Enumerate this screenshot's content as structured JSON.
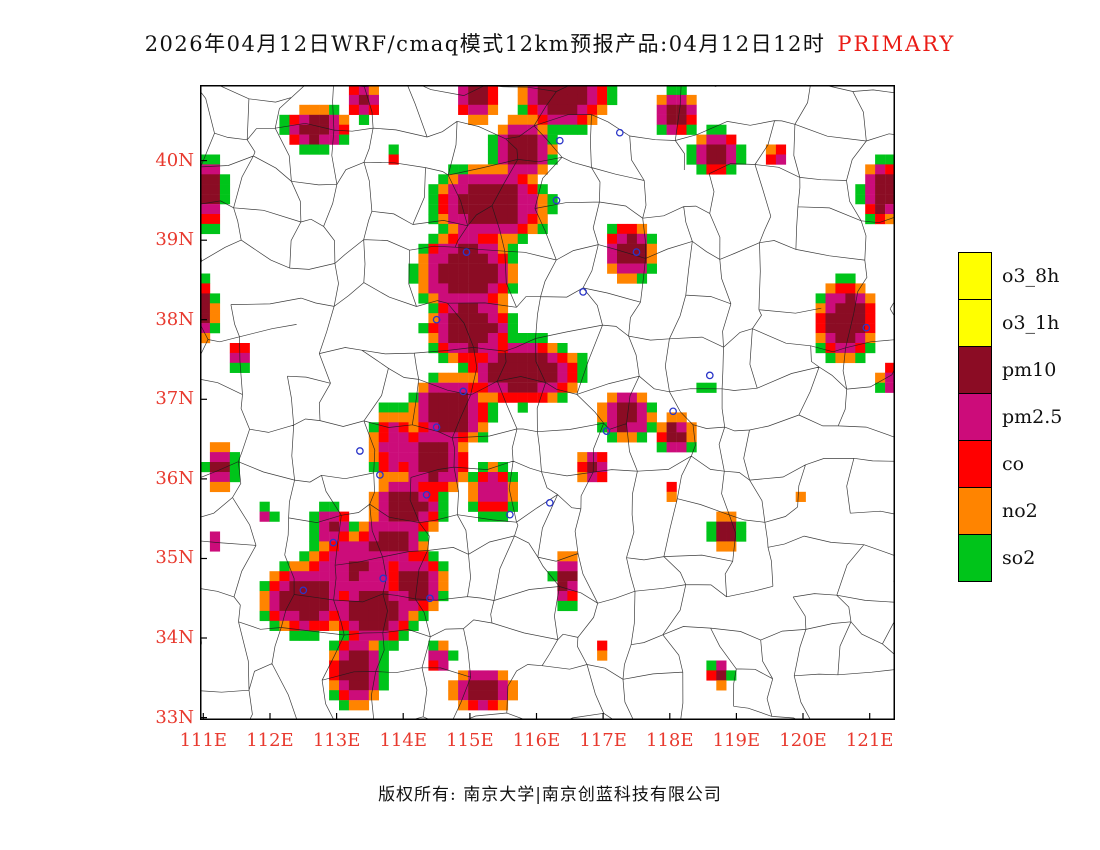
{
  "title": {
    "main": "2026年04月12日WRF/cmaq模式12km预报产品:04月12日12时",
    "tag": "PRIMARY"
  },
  "footer": {
    "copyright": "版权所有: 南京大学|南京创蓝科技有限公司"
  },
  "colors": {
    "axis_label": "#e8392e",
    "title_tag": "#ea1c16",
    "marker": "#2a35c8",
    "boundary": "#1b1b1b",
    "frame": "#000000"
  },
  "legend": {
    "items": [
      {
        "label": "o3_8h",
        "color": "#ffff00"
      },
      {
        "label": "o3_1h",
        "color": "#ffff00"
      },
      {
        "label": "pm10",
        "color": "#8b0c24"
      },
      {
        "label": "pm2.5",
        "color": "#cc0c7a"
      },
      {
        "label": "co",
        "color": "#ff0000"
      },
      {
        "label": "no2",
        "color": "#ff8400"
      },
      {
        "label": "so2",
        "color": "#00c41a"
      }
    ]
  },
  "axes": {
    "lat_labels": [
      "40N",
      "39N",
      "38N",
      "37N",
      "36N",
      "35N",
      "34N",
      "33N"
    ],
    "lat_values": [
      40,
      39,
      38,
      37,
      36,
      35,
      34,
      33
    ],
    "lon_labels": [
      "111E",
      "112E",
      "113E",
      "114E",
      "115E",
      "116E",
      "117E",
      "118E",
      "119E",
      "120E",
      "121E"
    ],
    "lon_values": [
      111,
      112,
      113,
      114,
      115,
      116,
      117,
      118,
      119,
      120,
      121
    ]
  },
  "map": {
    "lon_range": [
      110.95,
      121.38
    ],
    "lat_range": [
      32.97,
      40.95
    ],
    "grid": {
      "cols": 70,
      "rows": 64
    },
    "palette": {
      "g": "#00c41a",
      "o": "#ff8400",
      "r": "#ff0000",
      "m": "#cc0c7a",
      "d": "#8b0c24"
    },
    "thresholds": {
      "g": 0.145,
      "o": 0.215,
      "r": 0.295,
      "m": 0.38,
      "d": 0.6
    },
    "falloff": 1.9,
    "boundary_seed": 7,
    "blobs": [
      [
        116.4,
        40.85,
        0.75,
        0.5,
        1.0
      ],
      [
        115.1,
        40.8,
        0.35,
        0.35,
        0.9
      ],
      [
        115.8,
        40.15,
        0.5,
        0.45,
        0.95
      ],
      [
        115.3,
        39.45,
        0.95,
        0.55,
        1.0
      ],
      [
        114.95,
        38.6,
        0.8,
        0.6,
        1.0
      ],
      [
        115.0,
        37.9,
        0.7,
        0.5,
        1.0
      ],
      [
        115.8,
        37.35,
        0.95,
        0.45,
        1.0
      ],
      [
        114.7,
        36.85,
        0.65,
        0.5,
        1.0
      ],
      [
        114.45,
        36.25,
        0.6,
        0.5,
        0.95
      ],
      [
        114.05,
        35.65,
        0.6,
        0.45,
        0.92
      ],
      [
        113.9,
        36.4,
        0.55,
        0.7,
        0.5
      ],
      [
        115.35,
        35.85,
        0.5,
        0.45,
        0.55
      ],
      [
        113.3,
        34.85,
        1.05,
        0.65,
        0.62
      ],
      [
        112.55,
        34.5,
        0.75,
        0.5,
        0.95
      ],
      [
        113.55,
        34.35,
        0.7,
        0.5,
        0.95
      ],
      [
        114.2,
        34.7,
        0.5,
        0.45,
        0.88
      ],
      [
        113.3,
        33.6,
        0.45,
        0.55,
        0.9
      ],
      [
        113.8,
        35.2,
        0.6,
        0.4,
        0.85
      ],
      [
        112.95,
        35.4,
        0.35,
        0.3,
        0.75
      ],
      [
        111.1,
        39.6,
        0.25,
        0.5,
        0.9
      ],
      [
        112.7,
        40.4,
        0.55,
        0.3,
        0.9
      ],
      [
        113.4,
        40.75,
        0.3,
        0.25,
        0.8
      ],
      [
        113.85,
        40.05,
        0.15,
        0.15,
        0.4
      ],
      [
        118.1,
        40.6,
        0.35,
        0.32,
        0.95
      ],
      [
        118.7,
        40.1,
        0.4,
        0.3,
        0.95
      ],
      [
        119.6,
        40.05,
        0.2,
        0.2,
        0.55
      ],
      [
        121.2,
        39.6,
        0.35,
        0.45,
        0.95
      ],
      [
        117.4,
        38.85,
        0.4,
        0.42,
        0.95
      ],
      [
        120.65,
        38.0,
        0.5,
        0.55,
        1.0
      ],
      [
        121.3,
        37.25,
        0.2,
        0.25,
        0.6
      ],
      [
        117.35,
        36.8,
        0.45,
        0.35,
        0.9
      ],
      [
        118.1,
        36.55,
        0.3,
        0.28,
        0.85
      ],
      [
        118.55,
        37.2,
        0.13,
        0.13,
        0.45
      ],
      [
        116.85,
        36.15,
        0.25,
        0.25,
        0.85
      ],
      [
        118.0,
        35.85,
        0.14,
        0.14,
        0.5
      ],
      [
        118.85,
        35.35,
        0.25,
        0.25,
        0.85
      ],
      [
        116.45,
        34.75,
        0.22,
        0.4,
        0.85
      ],
      [
        115.2,
        33.35,
        0.55,
        0.3,
        0.9
      ],
      [
        114.55,
        33.75,
        0.25,
        0.25,
        0.6
      ],
      [
        116.95,
        33.85,
        0.15,
        0.15,
        0.45
      ],
      [
        118.75,
        33.55,
        0.2,
        0.2,
        0.7
      ],
      [
        111.25,
        36.15,
        0.25,
        0.35,
        0.85
      ],
      [
        111.15,
        35.2,
        0.15,
        0.2,
        0.6
      ],
      [
        111.95,
        35.55,
        0.15,
        0.15,
        0.5
      ],
      [
        111.05,
        38.1,
        0.16,
        0.45,
        0.85
      ],
      [
        111.55,
        37.55,
        0.2,
        0.2,
        0.7
      ],
      [
        120.0,
        35.75,
        0.12,
        0.12,
        0.35
      ]
    ],
    "markers": [
      [
        116.35,
        40.25
      ],
      [
        117.25,
        40.35
      ],
      [
        116.3,
        39.5
      ],
      [
        114.95,
        38.85
      ],
      [
        116.7,
        38.35
      ],
      [
        114.5,
        38.0
      ],
      [
        117.5,
        38.85
      ],
      [
        114.9,
        37.1
      ],
      [
        114.5,
        36.65
      ],
      [
        113.65,
        36.05
      ],
      [
        114.35,
        35.8
      ],
      [
        115.6,
        35.55
      ],
      [
        116.2,
        35.7
      ],
      [
        112.95,
        35.2
      ],
      [
        112.5,
        34.6
      ],
      [
        113.7,
        34.75
      ],
      [
        114.4,
        34.5
      ],
      [
        117.05,
        36.6
      ],
      [
        118.05,
        36.85
      ],
      [
        118.6,
        37.3
      ],
      [
        120.95,
        37.9
      ],
      [
        113.35,
        36.35
      ]
    ]
  }
}
